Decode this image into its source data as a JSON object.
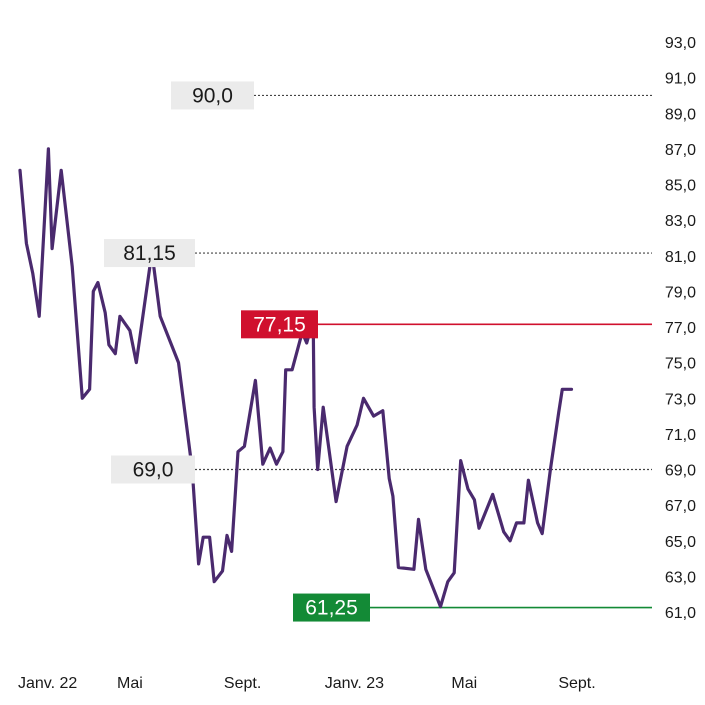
{
  "chart_data": {
    "type": "line",
    "title": "",
    "xlabel": "",
    "ylabel": "",
    "ylim": [
      61.0,
      93.0
    ],
    "x_tick_labels": [
      "Janv. 22",
      "Mai",
      "Sept.",
      "Janv. 23",
      "Mai",
      "Sept."
    ],
    "x_tick_dates": [
      "2022-01-01",
      "2022-05-01",
      "2022-09-01",
      "2023-01-01",
      "2023-05-01",
      "2023-09-01"
    ],
    "y_ticks": [
      "61,0",
      "63,0",
      "65,0",
      "67,0",
      "69,0",
      "71,0",
      "73,0",
      "75,0",
      "77,0",
      "79,0",
      "81,0",
      "83,0",
      "85,0",
      "87,0",
      "89,0",
      "91,0",
      "93,0"
    ],
    "y_tick_values": [
      61,
      63,
      65,
      67,
      69,
      71,
      73,
      75,
      77,
      79,
      81,
      83,
      85,
      87,
      89,
      91,
      93
    ],
    "line_color": "#4a2a6e",
    "series": [
      {
        "points": [
          [
            "2022-01-01",
            85.8
          ],
          [
            "2022-01-08",
            81.7
          ],
          [
            "2022-01-15",
            80.0
          ],
          [
            "2022-01-22",
            77.6
          ],
          [
            "2022-02-01",
            87.0
          ],
          [
            "2022-02-05",
            81.4
          ],
          [
            "2022-02-15",
            85.8
          ],
          [
            "2022-02-27",
            80.4
          ],
          [
            "2022-03-10",
            73.0
          ],
          [
            "2022-03-18",
            73.5
          ],
          [
            "2022-03-22",
            79.0
          ],
          [
            "2022-03-27",
            79.5
          ],
          [
            "2022-04-04",
            77.8
          ],
          [
            "2022-04-08",
            76.0
          ],
          [
            "2022-04-15",
            75.5
          ],
          [
            "2022-04-20",
            77.6
          ],
          [
            "2022-05-01",
            76.8
          ],
          [
            "2022-05-08",
            75.0
          ],
          [
            "2022-05-25",
            81.2
          ],
          [
            "2022-06-03",
            77.6
          ],
          [
            "2022-06-23",
            75.0
          ],
          [
            "2022-07-08",
            69.0
          ],
          [
            "2022-07-15",
            63.7
          ],
          [
            "2022-07-20",
            65.2
          ],
          [
            "2022-07-27",
            65.2
          ],
          [
            "2022-08-01",
            62.7
          ],
          [
            "2022-08-10",
            63.3
          ],
          [
            "2022-08-15",
            65.3
          ],
          [
            "2022-08-20",
            64.4
          ],
          [
            "2022-08-27",
            70.0
          ],
          [
            "2022-09-03",
            70.3
          ],
          [
            "2022-09-15",
            74.0
          ],
          [
            "2022-09-23",
            69.3
          ],
          [
            "2022-10-01",
            70.2
          ],
          [
            "2022-10-08",
            69.3
          ],
          [
            "2022-10-15",
            70.0
          ],
          [
            "2022-10-18",
            74.6
          ],
          [
            "2022-10-25",
            74.6
          ],
          [
            "2022-11-05",
            76.7
          ],
          [
            "2022-11-10",
            76.1
          ],
          [
            "2022-11-17",
            77.4
          ],
          [
            "2022-11-18",
            72.5
          ],
          [
            "2022-11-22",
            69.0
          ],
          [
            "2022-11-28",
            72.5
          ],
          [
            "2022-12-12",
            67.2
          ],
          [
            "2022-12-24",
            70.3
          ],
          [
            "2023-01-04",
            71.5
          ],
          [
            "2023-01-11",
            73.0
          ],
          [
            "2023-01-22",
            72.0
          ],
          [
            "2023-02-01",
            72.3
          ],
          [
            "2023-02-08",
            68.5
          ],
          [
            "2023-02-12",
            67.5
          ],
          [
            "2023-02-18",
            63.5
          ],
          [
            "2023-03-07",
            63.4
          ],
          [
            "2023-03-12",
            66.2
          ],
          [
            "2023-03-20",
            63.4
          ],
          [
            "2023-04-05",
            61.3
          ],
          [
            "2023-04-13",
            62.7
          ],
          [
            "2023-04-20",
            63.2
          ],
          [
            "2023-04-27",
            69.5
          ],
          [
            "2023-05-05",
            67.9
          ],
          [
            "2023-05-12",
            67.3
          ],
          [
            "2023-05-17",
            65.7
          ],
          [
            "2023-06-01",
            67.6
          ],
          [
            "2023-06-13",
            65.5
          ],
          [
            "2023-06-20",
            65.0
          ],
          [
            "2023-06-27",
            66.0
          ],
          [
            "2023-07-05",
            66.0
          ],
          [
            "2023-07-10",
            68.4
          ],
          [
            "2023-07-20",
            66.0
          ],
          [
            "2023-07-25",
            65.4
          ],
          [
            "2023-08-03",
            69.0
          ],
          [
            "2023-08-12",
            72.2
          ],
          [
            "2023-08-16",
            73.5
          ],
          [
            "2023-08-26",
            73.5
          ]
        ]
      }
    ],
    "reference_lines": [
      {
        "label": "90,0",
        "value": 90.0,
        "style": "dotted",
        "color": "#444444",
        "label_bg": "#ebebeb",
        "label_color": "#1a1a1a"
      },
      {
        "label": "81,15",
        "value": 81.15,
        "style": "dotted",
        "color": "#444444",
        "label_bg": "#ebebeb",
        "label_color": "#1a1a1a"
      },
      {
        "label": "77,15",
        "value": 77.15,
        "style": "solid",
        "color": "#d0102e",
        "label_bg": "#d0102e",
        "label_color": "#ffffff"
      },
      {
        "label": "69,0",
        "value": 69.0,
        "style": "dotted",
        "color": "#444444",
        "label_bg": "#ebebeb",
        "label_color": "#1a1a1a"
      },
      {
        "label": "61,25",
        "value": 61.25,
        "style": "solid",
        "color": "#138a36",
        "label_bg": "#138a36",
        "label_color": "#ffffff"
      }
    ],
    "grid": false,
    "legend": "none"
  }
}
